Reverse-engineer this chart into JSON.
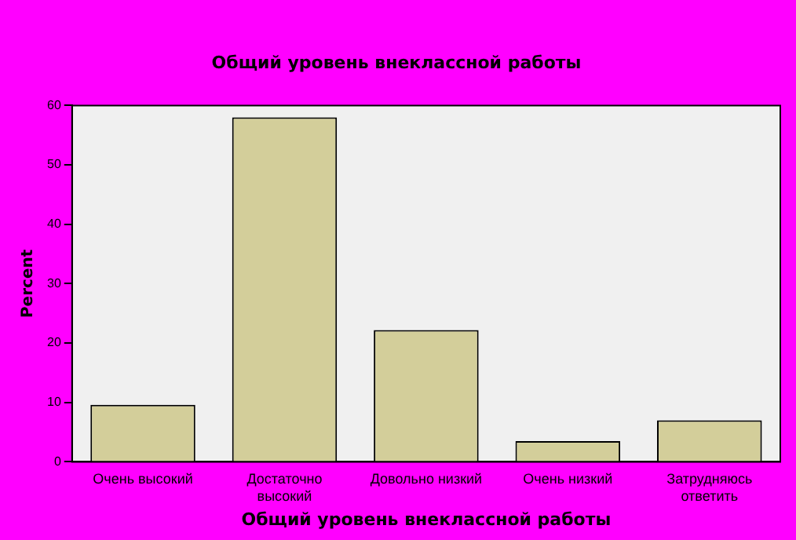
{
  "chart_data": {
    "type": "bar",
    "title": "Общий уровень внеклассной работы",
    "xlabel": "Общий уровень внеклассной работы",
    "ylabel": "Percent",
    "categories": [
      [
        "Очень высокий"
      ],
      [
        "Достаточно",
        "высокий"
      ],
      [
        "Довольно низкий"
      ],
      [
        "Очень низкий"
      ],
      [
        "Затрудняюсь",
        "ответить"
      ]
    ],
    "values": [
      9.6,
      58.0,
      22.2,
      3.5,
      7.0
    ],
    "color": "#d3ce9a",
    "ylim": [
      0,
      60
    ],
    "yticks": [
      0,
      10,
      20,
      30,
      40,
      50,
      60
    ],
    "grid": false,
    "legend": false
  }
}
